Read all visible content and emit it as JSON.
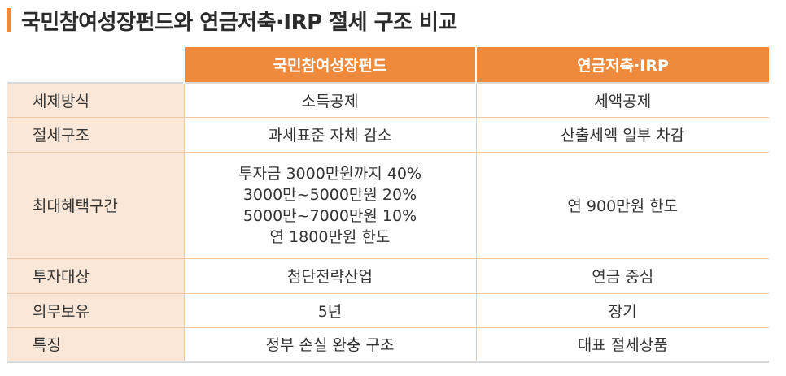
{
  "title": "국민참여성장펀드와 연금저축·IRP 절세 구조 비교",
  "columns": [
    "",
    "국민참여성장펀드",
    "연금저축·IRP"
  ],
  "rows": [
    {
      "label": "세제방식",
      "fund": [
        "소득공제"
      ],
      "pension": [
        "세액공제"
      ]
    },
    {
      "label": "절세구조",
      "fund": [
        "과세표준 자체 감소"
      ],
      "pension": [
        "산출세액 일부 차감"
      ]
    },
    {
      "label": "최대혜택구간",
      "fund": [
        "투자금 3000만원까지 40%",
        "3000만~5000만원 20%",
        "5000만~7000만원 10%",
        "연 1800만원 한도"
      ],
      "pension": [
        "연 900만원 한도"
      ]
    },
    {
      "label": "투자대상",
      "fund": [
        "첨단전략산업"
      ],
      "pension": [
        "연금 중심"
      ]
    },
    {
      "label": "의무보유",
      "fund": [
        "5년"
      ],
      "pension": [
        "장기"
      ]
    },
    {
      "label": "특징",
      "fund": [
        "정부 손실 완충 구조"
      ],
      "pension": [
        "대표 절세상품"
      ]
    }
  ],
  "colors": {
    "accent": "#ef8a3c",
    "label_bg": "#fbe7d7",
    "grid": "#f1c8a6"
  }
}
